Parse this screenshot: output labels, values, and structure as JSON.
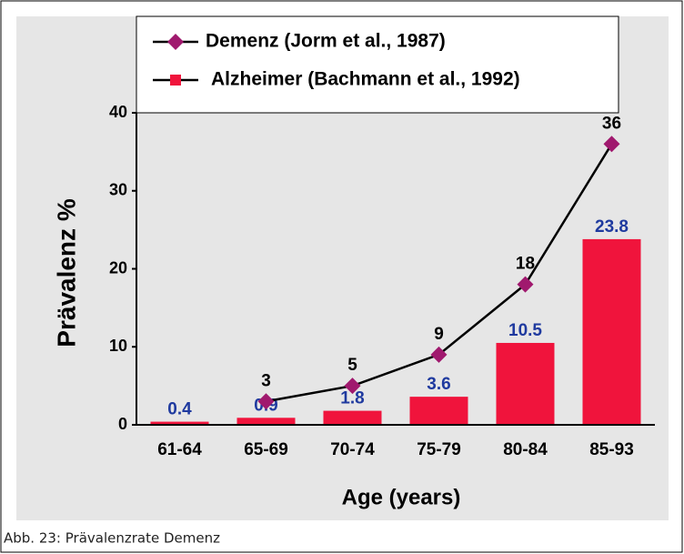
{
  "chart_data": {
    "type": "bar",
    "categories": [
      "61-64",
      "65-69",
      "70-74",
      "75-79",
      "80-84",
      "85-93"
    ],
    "series": [
      {
        "name": "Demenz (Jorm et al., 1987)",
        "type": "line",
        "color": "#a0196e",
        "label_color": "#000000",
        "values": [
          null,
          3,
          5,
          9,
          18,
          36
        ]
      },
      {
        "name": "Alzheimer (Bachmann et al., 1992)",
        "type": "bar",
        "color": "#f0143c",
        "label_color": "#1f3a9f",
        "values": [
          0.4,
          0.9,
          1.8,
          3.6,
          10.5,
          23.8
        ]
      }
    ],
    "ylabel": "Prävalenz %",
    "xlabel": "Age (years)",
    "ylim": [
      0,
      40
    ],
    "yticks": [
      0,
      10,
      20,
      30,
      40
    ],
    "grid": false
  },
  "caption": "Abb. 23: Prävalenzrate Demenz"
}
